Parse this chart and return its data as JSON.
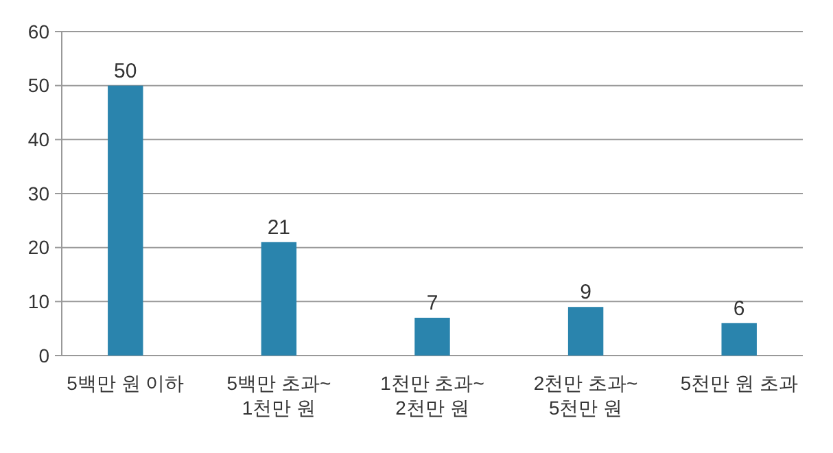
{
  "chart_data": {
    "type": "bar",
    "categories": [
      "5백만 원 이하",
      "5백만 초과~\n1천만 원",
      "1천만 초과~\n2천만 원",
      "2천만 초과~\n5천만 원",
      "5천만 원 초과"
    ],
    "values": [
      50,
      21,
      7,
      9,
      6
    ],
    "color": "#2a84ad",
    "ylim": [
      0,
      60
    ],
    "yticks": [
      0,
      10,
      20,
      30,
      40,
      50,
      60
    ],
    "grid": "y",
    "data_labels": true
  }
}
